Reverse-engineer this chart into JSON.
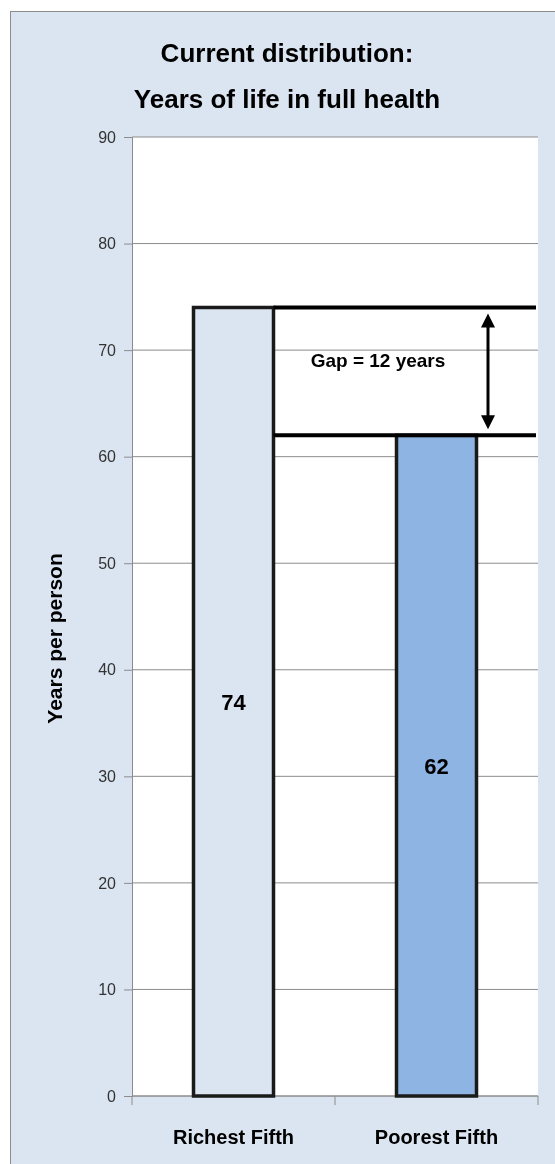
{
  "chart_data": {
    "type": "bar",
    "title": "Current distribution:\nYears of life in full health",
    "ylabel": "Years per person",
    "categories": [
      "Richest Fifth",
      "Poorest Fifth"
    ],
    "values": [
      74,
      62
    ],
    "colors": [
      "#dbe5f1",
      "#8eb4e3"
    ],
    "ylim": [
      0,
      90
    ],
    "yticks": [
      0,
      10,
      20,
      30,
      40,
      50,
      60,
      70,
      80,
      90
    ],
    "grid": "y",
    "data_labels": true,
    "ref_lines": [
      {
        "axis": "y",
        "value": 74,
        "color": "#000000"
      },
      {
        "axis": "y",
        "value": 62,
        "color": "#000000"
      }
    ],
    "annotations": [
      "Gap = 12 years"
    ]
  }
}
